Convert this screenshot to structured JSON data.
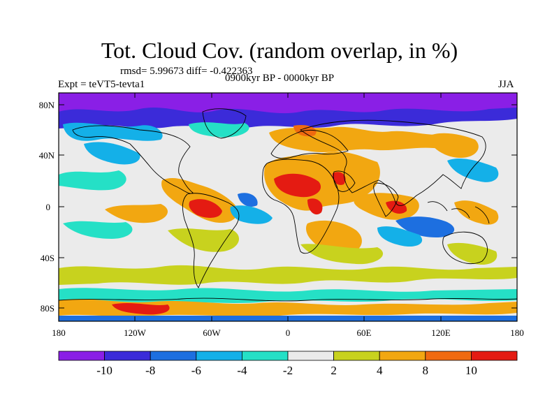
{
  "title": "Tot. Cloud Cov. (random overlap, in %)",
  "stats": "rmsd= 5.99673  diff= -0.422363",
  "period": "0900kyr BP - 0000kyr BP",
  "experiment": "Expt = teVT5-tevta1",
  "season": "JJA",
  "lat_labels": [
    "80N",
    "40N",
    "0",
    "40S",
    "80S"
  ],
  "lon_labels": [
    "180",
    "120W",
    "60W",
    "0",
    "60E",
    "120E",
    "180"
  ],
  "colorbar": {
    "labels": [
      "-10",
      "-8",
      "-6",
      "-4",
      "-2",
      "2",
      "4",
      "8",
      "10"
    ],
    "colors": [
      "#8a1fe6",
      "#3b2bd9",
      "#1d6fe0",
      "#14b0e8",
      "#25e0c6",
      "#ebebeb",
      "#c8d21e",
      "#f2a711",
      "#f06a10",
      "#e41b12"
    ]
  },
  "colors": {
    "ocean_blob_negative": "#1d6fe0",
    "arctic": "#8a1fe6",
    "neutral": "#ebebeb",
    "positive_strong": "#e41b12"
  }
}
